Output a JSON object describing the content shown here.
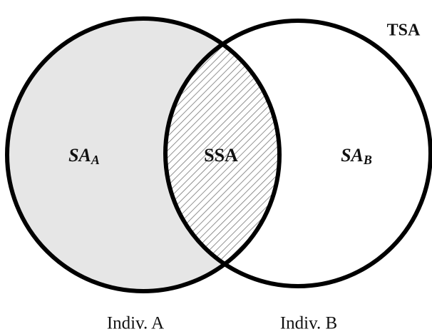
{
  "diagram": {
    "regions": [
      {
        "label": "SA",
        "subscript": "A"
      },
      {
        "label": "SSA"
      },
      {
        "label": "SA",
        "subscript": "B"
      }
    ],
    "outer_label": "TSA",
    "individuals": [
      "Indiv. A",
      "Indiv. B"
    ]
  }
}
